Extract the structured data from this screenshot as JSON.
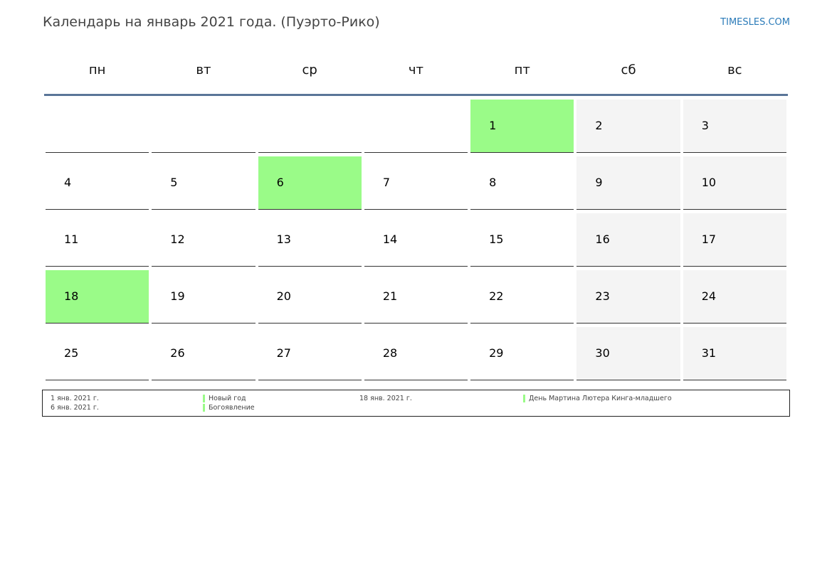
{
  "header": {
    "title": "Календарь на январь 2021 года. (Пуэрто-Рико)",
    "site": "TIMESLES.COM"
  },
  "weekdays": [
    "пн",
    "вт",
    "ср",
    "чт",
    "пт",
    "сб",
    "вс"
  ],
  "weeks": [
    [
      "",
      "",
      "",
      "",
      "1",
      "2",
      "3"
    ],
    [
      "4",
      "5",
      "6",
      "7",
      "8",
      "9",
      "10"
    ],
    [
      "11",
      "12",
      "13",
      "14",
      "15",
      "16",
      "17"
    ],
    [
      "18",
      "19",
      "20",
      "21",
      "22",
      "23",
      "24"
    ],
    [
      "25",
      "26",
      "27",
      "28",
      "29",
      "30",
      "31"
    ]
  ],
  "legend": [
    {
      "date": "1 янв. 2021 г.",
      "name": "Новый год"
    },
    {
      "date": "6 янв. 2021 г.",
      "name": "Богоявление"
    },
    {
      "date": "18 янв. 2021 г.",
      "name": "День Мартина Лютера Кинга-младшего"
    }
  ],
  "colors": {
    "holiday": "#9afb88",
    "weekend": "#f4f4f4",
    "header_rule": "#5a7598",
    "link": "#2b7bb9"
  }
}
